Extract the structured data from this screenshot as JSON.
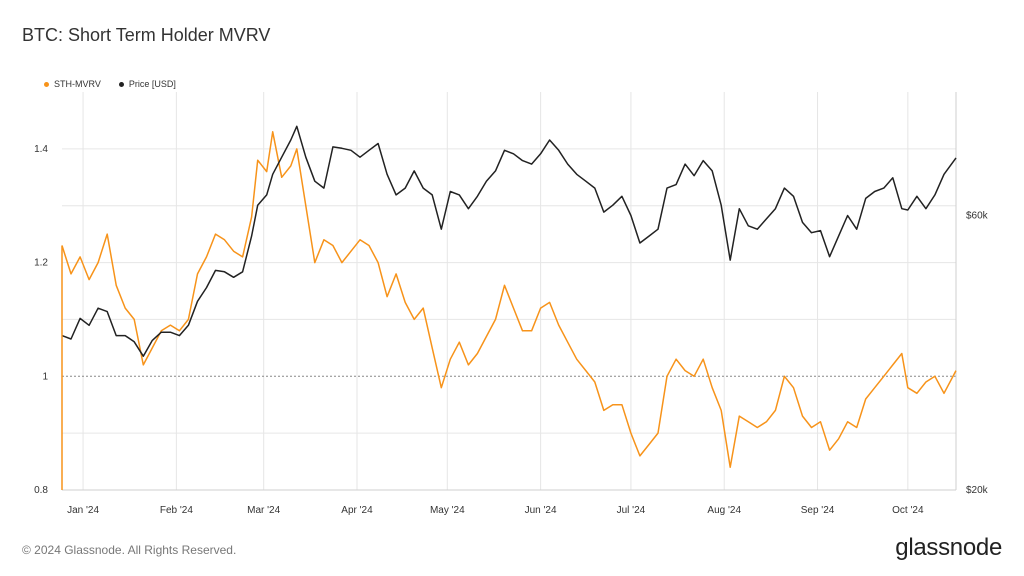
{
  "title": "BTC: Short Term Holder MVRV",
  "footer": {
    "copyright": "© 2024 Glassnode. All Rights Reserved.",
    "logo": "glassnode"
  },
  "colors": {
    "mvrv": "#f7931a",
    "price": "#222222",
    "grid": "#e6e6e6",
    "reference": "#888888"
  },
  "chart_data": {
    "type": "line",
    "legend": [
      {
        "name": "STH-MVRV",
        "color": "#f7931a"
      },
      {
        "name": "Price [USD]",
        "color": "#222222"
      }
    ],
    "x_range": [
      "2023-12-27",
      "2024-10-19"
    ],
    "x_ticks": [
      {
        "date": "2024-01-03",
        "label": "Jan '24"
      },
      {
        "date": "2024-02-03",
        "label": "Feb '24"
      },
      {
        "date": "2024-03-03",
        "label": "Mar '24"
      },
      {
        "date": "2024-04-03",
        "label": "Apr '24"
      },
      {
        "date": "2024-05-03",
        "label": "May '24"
      },
      {
        "date": "2024-06-03",
        "label": "Jun '24"
      },
      {
        "date": "2024-07-03",
        "label": "Jul '24"
      },
      {
        "date": "2024-08-03",
        "label": "Aug '24"
      },
      {
        "date": "2024-09-03",
        "label": "Sep '24"
      },
      {
        "date": "2024-10-03",
        "label": "Oct '24"
      }
    ],
    "y_left": {
      "range": [
        0.8,
        1.5
      ],
      "ticks": [
        0.8,
        1,
        1.2,
        1.4
      ],
      "tick_labels": [
        "0.8",
        "1",
        "1.2",
        "1.4"
      ],
      "reference_line": 1.0
    },
    "y_right": {
      "range": [
        20000,
        78000
      ],
      "ticks": [
        20000,
        60000
      ],
      "tick_labels": [
        "$20k",
        "$60k"
      ]
    },
    "series": [
      {
        "name": "STH-MVRV",
        "axis": "left",
        "points": [
          [
            "2023-12-27",
            1.23
          ],
          [
            "2023-12-30",
            1.18
          ],
          [
            "2024-01-02",
            1.21
          ],
          [
            "2024-01-05",
            1.17
          ],
          [
            "2024-01-08",
            1.2
          ],
          [
            "2024-01-11",
            1.25
          ],
          [
            "2024-01-14",
            1.16
          ],
          [
            "2024-01-17",
            1.12
          ],
          [
            "2024-01-20",
            1.1
          ],
          [
            "2024-01-23",
            1.02
          ],
          [
            "2024-01-26",
            1.05
          ],
          [
            "2024-01-29",
            1.08
          ],
          [
            "2024-02-01",
            1.09
          ],
          [
            "2024-02-04",
            1.08
          ],
          [
            "2024-02-07",
            1.1
          ],
          [
            "2024-02-10",
            1.18
          ],
          [
            "2024-02-13",
            1.21
          ],
          [
            "2024-02-16",
            1.25
          ],
          [
            "2024-02-19",
            1.24
          ],
          [
            "2024-02-22",
            1.22
          ],
          [
            "2024-02-25",
            1.21
          ],
          [
            "2024-02-28",
            1.28
          ],
          [
            "2024-03-01",
            1.38
          ],
          [
            "2024-03-04",
            1.36
          ],
          [
            "2024-03-06",
            1.43
          ],
          [
            "2024-03-09",
            1.35
          ],
          [
            "2024-03-12",
            1.37
          ],
          [
            "2024-03-14",
            1.4
          ],
          [
            "2024-03-17",
            1.3
          ],
          [
            "2024-03-20",
            1.2
          ],
          [
            "2024-03-23",
            1.24
          ],
          [
            "2024-03-26",
            1.23
          ],
          [
            "2024-03-29",
            1.2
          ],
          [
            "2024-04-01",
            1.22
          ],
          [
            "2024-04-04",
            1.24
          ],
          [
            "2024-04-07",
            1.23
          ],
          [
            "2024-04-10",
            1.2
          ],
          [
            "2024-04-13",
            1.14
          ],
          [
            "2024-04-16",
            1.18
          ],
          [
            "2024-04-19",
            1.13
          ],
          [
            "2024-04-22",
            1.1
          ],
          [
            "2024-04-25",
            1.12
          ],
          [
            "2024-04-28",
            1.05
          ],
          [
            "2024-05-01",
            0.98
          ],
          [
            "2024-05-04",
            1.03
          ],
          [
            "2024-05-07",
            1.06
          ],
          [
            "2024-05-10",
            1.02
          ],
          [
            "2024-05-13",
            1.04
          ],
          [
            "2024-05-16",
            1.07
          ],
          [
            "2024-05-19",
            1.1
          ],
          [
            "2024-05-22",
            1.16
          ],
          [
            "2024-05-25",
            1.12
          ],
          [
            "2024-05-28",
            1.08
          ],
          [
            "2024-05-31",
            1.08
          ],
          [
            "2024-06-03",
            1.12
          ],
          [
            "2024-06-06",
            1.13
          ],
          [
            "2024-06-09",
            1.09
          ],
          [
            "2024-06-12",
            1.06
          ],
          [
            "2024-06-15",
            1.03
          ],
          [
            "2024-06-18",
            1.01
          ],
          [
            "2024-06-21",
            0.99
          ],
          [
            "2024-06-24",
            0.94
          ],
          [
            "2024-06-27",
            0.95
          ],
          [
            "2024-06-30",
            0.95
          ],
          [
            "2024-07-03",
            0.9
          ],
          [
            "2024-07-06",
            0.86
          ],
          [
            "2024-07-09",
            0.88
          ],
          [
            "2024-07-12",
            0.9
          ],
          [
            "2024-07-15",
            1.0
          ],
          [
            "2024-07-18",
            1.03
          ],
          [
            "2024-07-21",
            1.01
          ],
          [
            "2024-07-24",
            1.0
          ],
          [
            "2024-07-27",
            1.03
          ],
          [
            "2024-07-30",
            0.98
          ],
          [
            "2024-08-02",
            0.94
          ],
          [
            "2024-08-05",
            0.84
          ],
          [
            "2024-08-08",
            0.93
          ],
          [
            "2024-08-11",
            0.92
          ],
          [
            "2024-08-14",
            0.91
          ],
          [
            "2024-08-17",
            0.92
          ],
          [
            "2024-08-20",
            0.94
          ],
          [
            "2024-08-23",
            1.0
          ],
          [
            "2024-08-26",
            0.98
          ],
          [
            "2024-08-29",
            0.93
          ],
          [
            "2024-09-01",
            0.91
          ],
          [
            "2024-09-04",
            0.92
          ],
          [
            "2024-09-07",
            0.87
          ],
          [
            "2024-09-10",
            0.89
          ],
          [
            "2024-09-13",
            0.92
          ],
          [
            "2024-09-16",
            0.91
          ],
          [
            "2024-09-19",
            0.96
          ],
          [
            "2024-09-22",
            0.98
          ],
          [
            "2024-09-25",
            1.0
          ],
          [
            "2024-09-28",
            1.02
          ],
          [
            "2024-10-01",
            1.04
          ],
          [
            "2024-10-03",
            0.98
          ],
          [
            "2024-10-06",
            0.97
          ],
          [
            "2024-10-09",
            0.99
          ],
          [
            "2024-10-12",
            1.0
          ],
          [
            "2024-10-15",
            0.97
          ],
          [
            "2024-10-19",
            1.01
          ]
        ]
      },
      {
        "name": "Price [USD]",
        "axis": "right",
        "points": [
          [
            "2023-12-27",
            42500
          ],
          [
            "2023-12-30",
            42000
          ],
          [
            "2024-01-02",
            45000
          ],
          [
            "2024-01-05",
            44000
          ],
          [
            "2024-01-08",
            46500
          ],
          [
            "2024-01-11",
            46000
          ],
          [
            "2024-01-14",
            42500
          ],
          [
            "2024-01-17",
            42500
          ],
          [
            "2024-01-20",
            41600
          ],
          [
            "2024-01-23",
            39500
          ],
          [
            "2024-01-26",
            41800
          ],
          [
            "2024-01-29",
            43000
          ],
          [
            "2024-02-01",
            43000
          ],
          [
            "2024-02-04",
            42500
          ],
          [
            "2024-02-07",
            44000
          ],
          [
            "2024-02-10",
            47500
          ],
          [
            "2024-02-13",
            49500
          ],
          [
            "2024-02-16",
            52000
          ],
          [
            "2024-02-19",
            51800
          ],
          [
            "2024-02-22",
            51000
          ],
          [
            "2024-02-25",
            51800
          ],
          [
            "2024-02-28",
            57000
          ],
          [
            "2024-03-01",
            61500
          ],
          [
            "2024-03-04",
            63000
          ],
          [
            "2024-03-06",
            66000
          ],
          [
            "2024-03-09",
            68500
          ],
          [
            "2024-03-12",
            71000
          ],
          [
            "2024-03-14",
            73000
          ],
          [
            "2024-03-17",
            68500
          ],
          [
            "2024-03-20",
            65000
          ],
          [
            "2024-03-23",
            64000
          ],
          [
            "2024-03-26",
            70000
          ],
          [
            "2024-03-29",
            69800
          ],
          [
            "2024-04-01",
            69500
          ],
          [
            "2024-04-04",
            68500
          ],
          [
            "2024-04-07",
            69500
          ],
          [
            "2024-04-10",
            70500
          ],
          [
            "2024-04-13",
            66000
          ],
          [
            "2024-04-16",
            63000
          ],
          [
            "2024-04-19",
            64000
          ],
          [
            "2024-04-22",
            66500
          ],
          [
            "2024-04-25",
            64000
          ],
          [
            "2024-04-28",
            63000
          ],
          [
            "2024-05-01",
            58000
          ],
          [
            "2024-05-04",
            63500
          ],
          [
            "2024-05-07",
            63000
          ],
          [
            "2024-05-10",
            61000
          ],
          [
            "2024-05-13",
            62800
          ],
          [
            "2024-05-16",
            65000
          ],
          [
            "2024-05-19",
            66500
          ],
          [
            "2024-05-22",
            69500
          ],
          [
            "2024-05-25",
            69000
          ],
          [
            "2024-05-28",
            68000
          ],
          [
            "2024-05-31",
            67500
          ],
          [
            "2024-06-03",
            69000
          ],
          [
            "2024-06-06",
            71000
          ],
          [
            "2024-06-09",
            69500
          ],
          [
            "2024-06-12",
            67500
          ],
          [
            "2024-06-15",
            66000
          ],
          [
            "2024-06-18",
            65000
          ],
          [
            "2024-06-21",
            64000
          ],
          [
            "2024-06-24",
            60500
          ],
          [
            "2024-06-27",
            61500
          ],
          [
            "2024-06-30",
            62800
          ],
          [
            "2024-07-03",
            60000
          ],
          [
            "2024-07-06",
            56000
          ],
          [
            "2024-07-09",
            57000
          ],
          [
            "2024-07-12",
            58000
          ],
          [
            "2024-07-15",
            64000
          ],
          [
            "2024-07-18",
            64500
          ],
          [
            "2024-07-21",
            67500
          ],
          [
            "2024-07-24",
            65800
          ],
          [
            "2024-07-27",
            68000
          ],
          [
            "2024-07-30",
            66500
          ],
          [
            "2024-08-02",
            61500
          ],
          [
            "2024-08-05",
            53500
          ],
          [
            "2024-08-08",
            61000
          ],
          [
            "2024-08-11",
            58500
          ],
          [
            "2024-08-14",
            58000
          ],
          [
            "2024-08-17",
            59500
          ],
          [
            "2024-08-20",
            61000
          ],
          [
            "2024-08-23",
            64000
          ],
          [
            "2024-08-26",
            62800
          ],
          [
            "2024-08-29",
            59000
          ],
          [
            "2024-09-01",
            57500
          ],
          [
            "2024-09-04",
            57800
          ],
          [
            "2024-09-07",
            54000
          ],
          [
            "2024-09-10",
            57000
          ],
          [
            "2024-09-13",
            60000
          ],
          [
            "2024-09-16",
            58000
          ],
          [
            "2024-09-19",
            62500
          ],
          [
            "2024-09-22",
            63500
          ],
          [
            "2024-09-25",
            64000
          ],
          [
            "2024-09-28",
            65500
          ],
          [
            "2024-10-01",
            61000
          ],
          [
            "2024-10-03",
            60800
          ],
          [
            "2024-10-06",
            62800
          ],
          [
            "2024-10-09",
            61000
          ],
          [
            "2024-10-12",
            63000
          ],
          [
            "2024-10-15",
            66000
          ],
          [
            "2024-10-19",
            68400
          ]
        ]
      }
    ]
  }
}
